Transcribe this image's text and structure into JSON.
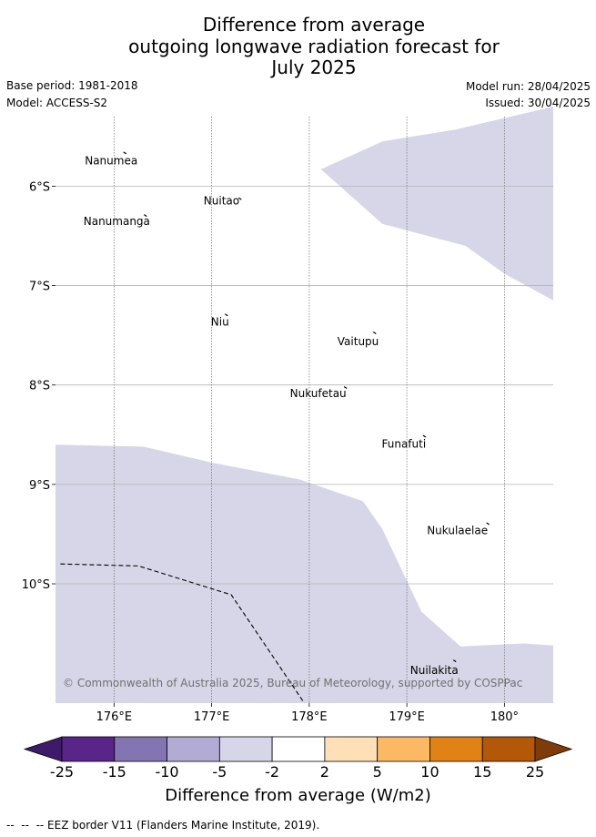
{
  "header": {
    "title": "Difference from average\noutgoing longwave radiation forecast for\nJuly 2025",
    "base_period": "Base period: 1981-2018",
    "model": "Model: ACCESS-S2",
    "model_run": "Model run: 28/04/2025",
    "issued": "Issued: 30/04/2025"
  },
  "map": {
    "lat_range": [
      -11.2,
      -5.3
    ],
    "lon_range": [
      175.4,
      180.5
    ],
    "lat_ticks": [
      {
        "value": -6,
        "label": "6°S"
      },
      {
        "value": -7,
        "label": "7°S"
      },
      {
        "value": -8,
        "label": "8°S"
      },
      {
        "value": -9,
        "label": "9°S"
      },
      {
        "value": -10,
        "label": "10°S"
      }
    ],
    "lon_ticks": [
      {
        "value": 176,
        "label": "176°E"
      },
      {
        "value": 177,
        "label": "177°E"
      },
      {
        "value": 178,
        "label": "178°E"
      },
      {
        "value": 179,
        "label": "179°E"
      },
      {
        "value": 180,
        "label": "180°"
      }
    ],
    "anomaly_color": "#d6d6e8",
    "regions": [
      {
        "name": "north-east",
        "category": "-5 to -2",
        "points": [
          [
            178.12,
            -5.83
          ],
          [
            178.75,
            -5.55
          ],
          [
            179.5,
            -5.43
          ],
          [
            180.5,
            -5.2
          ],
          [
            180.5,
            -7.15
          ],
          [
            180.0,
            -6.88
          ],
          [
            179.6,
            -6.6
          ],
          [
            178.75,
            -6.38
          ]
        ]
      },
      {
        "name": "south",
        "category": "-5 to -2",
        "points": [
          [
            175.4,
            -8.6
          ],
          [
            176.3,
            -8.62
          ],
          [
            177.0,
            -8.78
          ],
          [
            177.9,
            -8.95
          ],
          [
            178.55,
            -9.17
          ],
          [
            178.75,
            -9.45
          ],
          [
            179.15,
            -10.28
          ],
          [
            179.55,
            -10.63
          ],
          [
            179.75,
            -10.62
          ],
          [
            180.2,
            -10.6
          ],
          [
            180.5,
            -10.62
          ],
          [
            180.5,
            -11.2
          ],
          [
            175.4,
            -11.2
          ]
        ]
      }
    ],
    "eez_line": [
      [
        175.45,
        -9.8
      ],
      [
        176.25,
        -9.82
      ],
      [
        177.2,
        -10.11
      ],
      [
        177.95,
        -11.2
      ]
    ],
    "islands": [
      {
        "name": "Nanumea",
        "lon": 176.12,
        "lat": -5.67,
        "label_dx": -45,
        "label_dy": 12
      },
      {
        "name": "Nuitao",
        "lon": 177.3,
        "lat": -6.13,
        "label_dx": -41,
        "label_dy": 6
      },
      {
        "name": "Nanumanga",
        "lon": 176.33,
        "lat": -6.3,
        "label_dx": -69,
        "label_dy": 10
      },
      {
        "name": "Niu",
        "lon": 177.16,
        "lat": -7.3,
        "label_dx": -18,
        "label_dy": 11
      },
      {
        "name": "Vaitupu",
        "lon": 178.68,
        "lat": -7.48,
        "label_dx": -42,
        "label_dy": 13
      },
      {
        "name": "Nukufetau",
        "lon": 178.38,
        "lat": -8.03,
        "label_dx": -62,
        "label_dy": 10
      },
      {
        "name": "Funafuti",
        "lon": 179.19,
        "lat": -8.52,
        "label_dx": -48,
        "label_dy": 12
      },
      {
        "name": "Nukulaelae",
        "lon": 179.84,
        "lat": -9.4,
        "label_dx": -68,
        "label_dy": 11
      },
      {
        "name": "Nuilakita",
        "lon": 179.5,
        "lat": -10.78,
        "label_dx": -50,
        "label_dy": 14
      }
    ],
    "copyright": "© Commonwealth of Australia 2025, Bureau of Meteorology, supported by COSPPac"
  },
  "colorbar": {
    "title": "Difference from average (W/m2)",
    "tick_labels": [
      "-25",
      "-15",
      "-10",
      "-5",
      "-2",
      "2",
      "5",
      "10",
      "15",
      "25"
    ],
    "extend_low_color": "#3e1a6b",
    "extend_high_color": "#7f3b0a",
    "colors": [
      "#5a2589",
      "#8275b2",
      "#b2abd4",
      "#d6d6e8",
      "#ffffff",
      "#fee0b6",
      "#fdb863",
      "#e08214",
      "#b35806"
    ]
  },
  "footer": {
    "legend": "--  --  -- EEZ border V11 (Flanders Marine Institute, 2019)."
  }
}
